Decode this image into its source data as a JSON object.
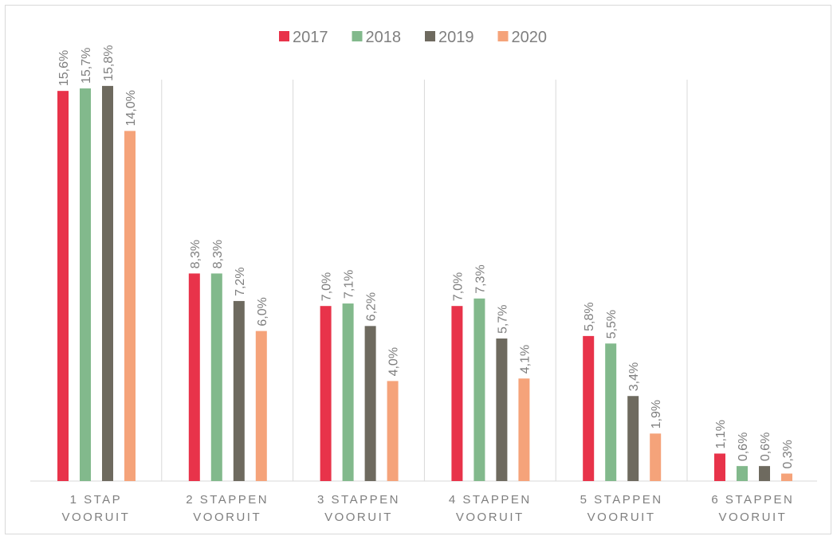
{
  "chart_data": {
    "type": "bar",
    "categories": [
      "1 STAP VOORUIT",
      "2 STAPPEN VOORUIT",
      "3 STAPPEN VOORUIT",
      "4 STAPPEN VOORUIT",
      "5 STAPPEN VOORUIT",
      "6 STAPPEN VOORUIT"
    ],
    "series": [
      {
        "name": "2017",
        "color": "#e8334a",
        "values": [
          15.6,
          8.3,
          7.0,
          7.0,
          5.8,
          1.1
        ],
        "value_labels": [
          "15,6%",
          "8,3%",
          "7,0%",
          "7,0%",
          "5,8%",
          "1,1%"
        ]
      },
      {
        "name": "2018",
        "color": "#82b98c",
        "values": [
          15.7,
          8.3,
          7.1,
          7.3,
          5.5,
          0.6
        ],
        "value_labels": [
          "15,7%",
          "8,3%",
          "7,1%",
          "7,3%",
          "5,5%",
          "0,6%"
        ]
      },
      {
        "name": "2019",
        "color": "#6e6a5f",
        "values": [
          15.8,
          7.2,
          6.2,
          5.7,
          3.4,
          0.6
        ],
        "value_labels": [
          "15,8%",
          "7,2%",
          "6,2%",
          "5,7%",
          "3,4%",
          "0,6%"
        ]
      },
      {
        "name": "2020",
        "color": "#f5a37a",
        "values": [
          14.0,
          6.0,
          4.0,
          4.1,
          1.9,
          0.3
        ],
        "value_labels": [
          "14,0%",
          "6,0%",
          "4,0%",
          "4,1%",
          "1,9%",
          "0,3%"
        ]
      }
    ],
    "legend": "top"
  }
}
